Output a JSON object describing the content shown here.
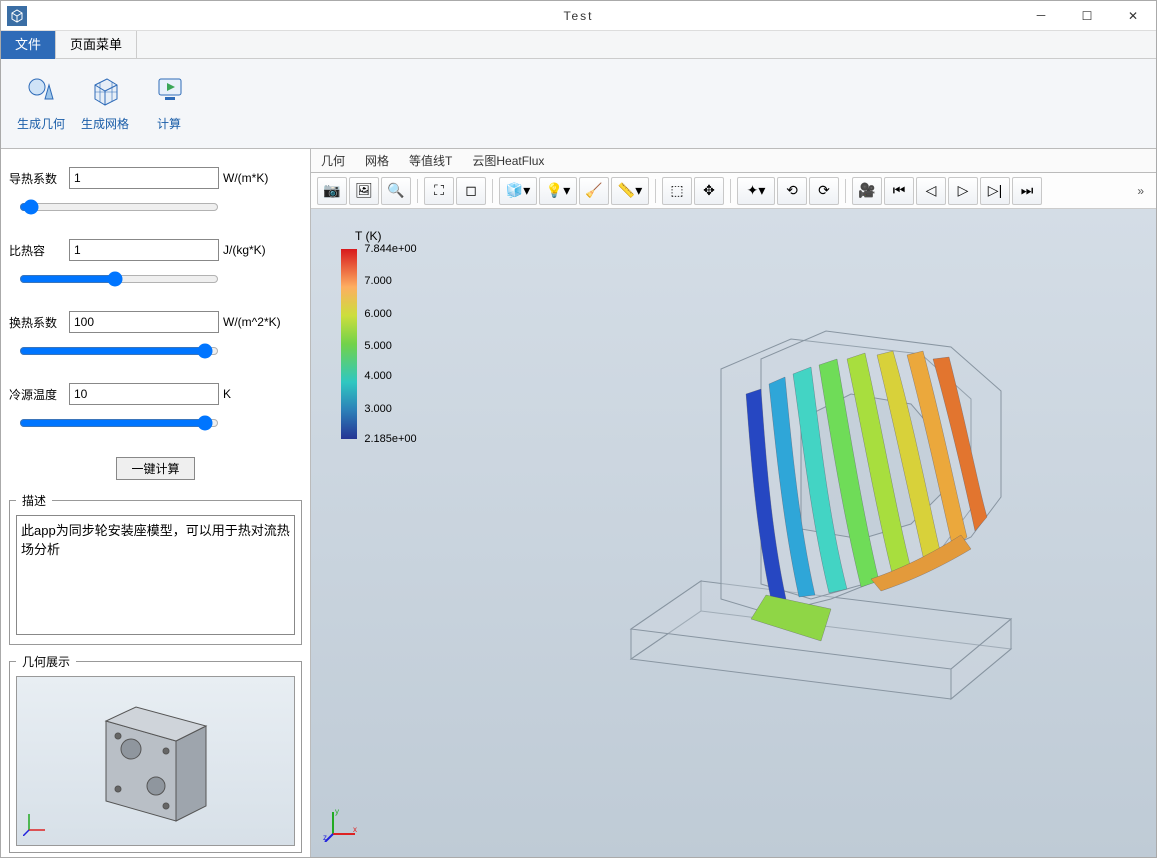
{
  "window": {
    "title": "Test"
  },
  "menu_tabs": {
    "file": "文件",
    "page_menu": "页面菜单"
  },
  "ribbon": {
    "gen_geom": "生成几何",
    "gen_mesh": "生成网格",
    "compute": "计算"
  },
  "params": {
    "thermal_conductivity": {
      "label": "导热系数",
      "value": "1",
      "unit": "W/(m*K)"
    },
    "specific_heat": {
      "label": "比热容",
      "value": "1",
      "unit": "J/(kg*K)"
    },
    "htc": {
      "label": "换热系数",
      "value": "100",
      "unit": "W/(m^2*K)"
    },
    "cold_source_temp": {
      "label": "冷源温度",
      "value": "10",
      "unit": "K"
    }
  },
  "buttons": {
    "one_click_compute": "一键计算"
  },
  "fieldsets": {
    "description": "描述",
    "geom_preview": "几何展示"
  },
  "description_text": "此app为同步轮安装座模型，可以用于热对流热场分析",
  "view_tabs": {
    "geom": "几何",
    "mesh": "网格",
    "isoline": "等值线T",
    "contour": "云图HeatFlux"
  },
  "toolbar_overflow": "»",
  "legend": {
    "title": "T (K)",
    "ticks": [
      {
        "pos": 0,
        "label": "7.844e+00"
      },
      {
        "pos": 17,
        "label": "7.000"
      },
      {
        "pos": 34,
        "label": "6.000"
      },
      {
        "pos": 51,
        "label": "5.000"
      },
      {
        "pos": 67,
        "label": "4.000"
      },
      {
        "pos": 84,
        "label": "3.000"
      },
      {
        "pos": 100,
        "label": "2.185e+00"
      }
    ]
  },
  "colors": {
    "accent": "#2e6bb8",
    "viewport_top": "#d4dde6",
    "viewport_bottom": "#bfcbd6"
  }
}
